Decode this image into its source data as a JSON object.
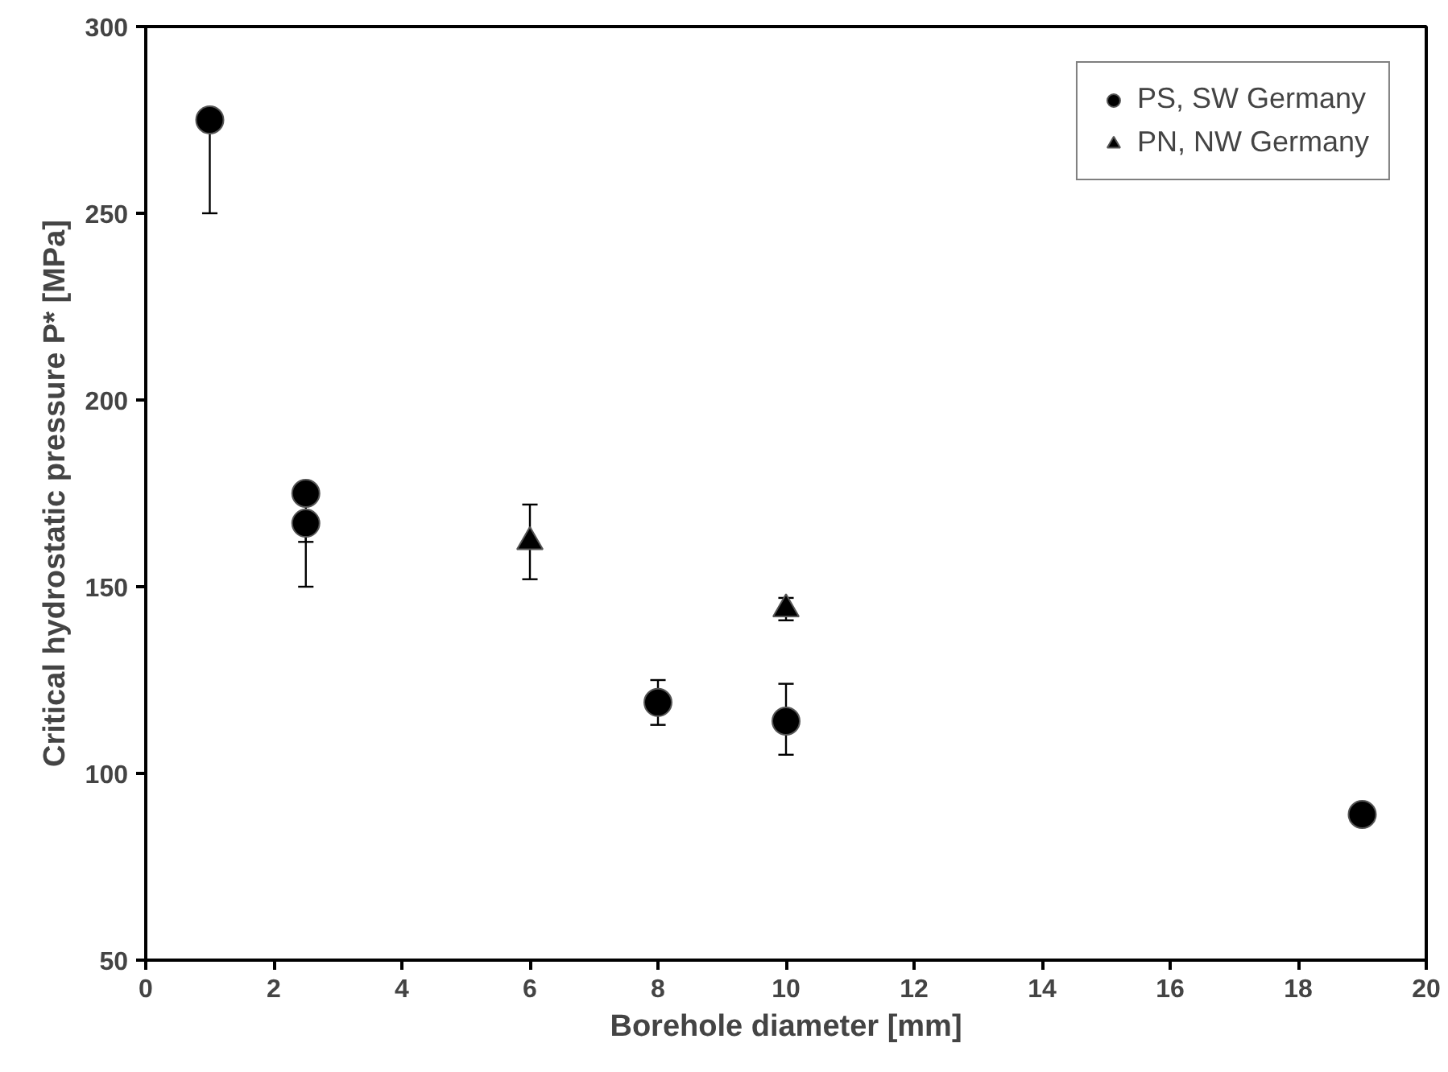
{
  "chart_data": {
    "type": "scatter",
    "xlabel": "Borehole diameter [mm]",
    "ylabel": "Critical hydrostatic pressure P* [MPa]",
    "xlim": [
      0,
      20
    ],
    "xticks": [
      0,
      2,
      4,
      6,
      8,
      10,
      12,
      14,
      16,
      18,
      20
    ],
    "ylim": [
      50,
      300
    ],
    "yticks": [
      50,
      100,
      150,
      200,
      250,
      300
    ],
    "grid": false,
    "legend": "top right",
    "series": [
      {
        "name": "PS, SW Germany",
        "color": "#000000",
        "marker": "circle",
        "x": [
          1,
          2.5,
          2.5,
          8,
          10,
          19
        ],
        "values": [
          275,
          175,
          167,
          119,
          114,
          89
        ],
        "errors": [
          [
            250,
            275
          ],
          [
            162,
            175
          ],
          [
            150,
            167
          ],
          6,
          [
            105,
            124
          ],
          null
        ]
      },
      {
        "name": "PN, NW Germany",
        "color": "#000000",
        "marker": "triangle",
        "x": [
          6,
          10
        ],
        "values": [
          162,
          144
        ],
        "errors": [
          10,
          3
        ]
      }
    ]
  }
}
